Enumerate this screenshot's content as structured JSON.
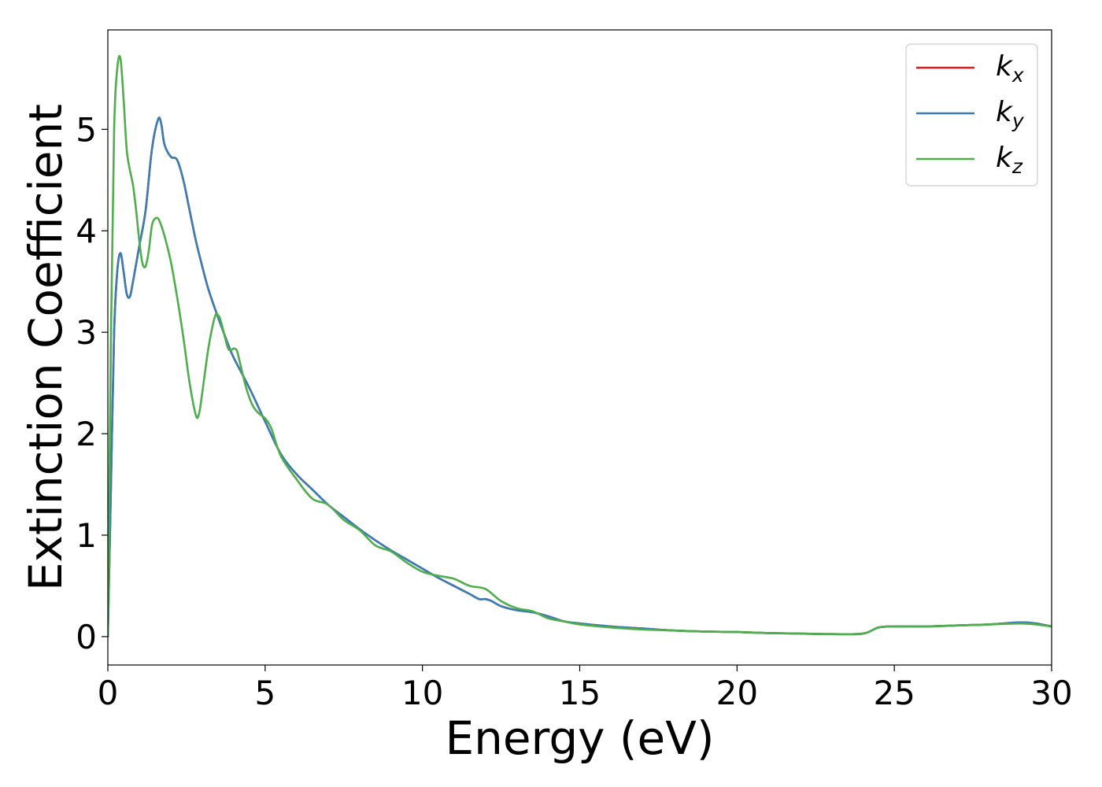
{
  "chart_data": {
    "type": "line",
    "title": "",
    "xlabel": "Energy (eV)",
    "ylabel": "Extinction Coefficient",
    "xlim": [
      0,
      30
    ],
    "ylim": [
      -0.28,
      5.98
    ],
    "xticks": [
      0,
      5,
      10,
      15,
      20,
      25,
      30
    ],
    "xtick_labels": [
      "0",
      "5",
      "10",
      "15",
      "20",
      "25",
      "30"
    ],
    "yticks": [
      0,
      1,
      2,
      3,
      4,
      5
    ],
    "ytick_labels": [
      "0",
      "1",
      "2",
      "3",
      "4",
      "5"
    ],
    "grid": false,
    "legend_position": "top-right",
    "series": [
      {
        "name": "k_x",
        "label_main": "k",
        "label_sub": "x",
        "color": "#e41a1c",
        "x": [
          0,
          0.1,
          0.2,
          0.3,
          0.4,
          0.5,
          0.6,
          0.7,
          0.8,
          1.0,
          1.2,
          1.4,
          1.6,
          1.7,
          1.8,
          2.0,
          2.2,
          2.4,
          2.6,
          2.8,
          3.0,
          3.2,
          3.5,
          3.8,
          4.0,
          4.5,
          5.0,
          5.5,
          6.0,
          6.5,
          7.0,
          7.5,
          8.0,
          8.5,
          9.0,
          9.5,
          10.0,
          10.5,
          11.0,
          11.5,
          11.8,
          12.0,
          12.2,
          12.5,
          13.0,
          13.5,
          14.0,
          14.5,
          15.0,
          16.0,
          17.0,
          18.0,
          19.0,
          20.0,
          21.0,
          22.0,
          23.0,
          24.0,
          24.5,
          25.0,
          26.0,
          27.0,
          28.0,
          29.0,
          29.5,
          30.0
        ],
        "y": [
          0,
          1.5,
          3.0,
          3.6,
          3.78,
          3.6,
          3.38,
          3.35,
          3.5,
          3.85,
          4.2,
          4.8,
          5.1,
          5.05,
          4.85,
          4.73,
          4.7,
          4.5,
          4.2,
          3.9,
          3.65,
          3.42,
          3.15,
          2.9,
          2.75,
          2.45,
          2.12,
          1.8,
          1.6,
          1.45,
          1.3,
          1.18,
          1.06,
          0.95,
          0.85,
          0.76,
          0.67,
          0.58,
          0.5,
          0.42,
          0.37,
          0.37,
          0.35,
          0.3,
          0.26,
          0.24,
          0.2,
          0.15,
          0.13,
          0.1,
          0.08,
          0.06,
          0.05,
          0.045,
          0.035,
          0.03,
          0.025,
          0.03,
          0.09,
          0.1,
          0.1,
          0.11,
          0.12,
          0.14,
          0.13,
          0.1
        ]
      },
      {
        "name": "k_y",
        "label_main": "k",
        "label_sub": "y",
        "color": "#377eb8",
        "x": [
          0,
          0.1,
          0.2,
          0.3,
          0.4,
          0.5,
          0.6,
          0.7,
          0.8,
          1.0,
          1.2,
          1.4,
          1.6,
          1.7,
          1.8,
          2.0,
          2.2,
          2.4,
          2.6,
          2.8,
          3.0,
          3.2,
          3.5,
          3.8,
          4.0,
          4.5,
          5.0,
          5.5,
          6.0,
          6.5,
          7.0,
          7.5,
          8.0,
          8.5,
          9.0,
          9.5,
          10.0,
          10.5,
          11.0,
          11.5,
          11.8,
          12.0,
          12.2,
          12.5,
          13.0,
          13.5,
          14.0,
          14.5,
          15.0,
          16.0,
          17.0,
          18.0,
          19.0,
          20.0,
          21.0,
          22.0,
          23.0,
          24.0,
          24.5,
          25.0,
          26.0,
          27.0,
          28.0,
          29.0,
          29.5,
          30.0
        ],
        "y": [
          0,
          1.5,
          3.0,
          3.6,
          3.78,
          3.6,
          3.38,
          3.35,
          3.5,
          3.85,
          4.2,
          4.8,
          5.1,
          5.05,
          4.85,
          4.73,
          4.7,
          4.5,
          4.2,
          3.9,
          3.65,
          3.42,
          3.15,
          2.9,
          2.75,
          2.45,
          2.12,
          1.8,
          1.6,
          1.45,
          1.3,
          1.18,
          1.06,
          0.95,
          0.85,
          0.76,
          0.67,
          0.58,
          0.5,
          0.42,
          0.37,
          0.37,
          0.35,
          0.3,
          0.26,
          0.24,
          0.2,
          0.15,
          0.13,
          0.1,
          0.08,
          0.06,
          0.05,
          0.045,
          0.035,
          0.03,
          0.025,
          0.03,
          0.09,
          0.1,
          0.1,
          0.11,
          0.12,
          0.14,
          0.13,
          0.1
        ]
      },
      {
        "name": "k_z",
        "label_main": "k",
        "label_sub": "z",
        "color": "#4daf4a",
        "x": [
          0,
          0.1,
          0.2,
          0.3,
          0.4,
          0.5,
          0.6,
          0.7,
          0.8,
          0.9,
          1.0,
          1.1,
          1.2,
          1.3,
          1.4,
          1.5,
          1.6,
          1.7,
          1.8,
          2.0,
          2.2,
          2.4,
          2.6,
          2.8,
          2.9,
          3.0,
          3.2,
          3.4,
          3.5,
          3.6,
          3.8,
          3.9,
          4.0,
          4.1,
          4.2,
          4.4,
          4.6,
          4.8,
          5.0,
          5.2,
          5.5,
          6.0,
          6.5,
          7.0,
          7.5,
          8.0,
          8.5,
          9.0,
          9.5,
          10.0,
          10.5,
          11.0,
          11.5,
          12.0,
          12.5,
          13.0,
          13.5,
          14.0,
          14.5,
          15.0,
          16.0,
          17.0,
          18.0,
          19.0,
          20.0,
          21.0,
          22.0,
          23.0,
          24.0,
          24.5,
          25.0,
          26.0,
          27.0,
          28.0,
          29.0,
          29.5,
          30.0
        ],
        "y": [
          0,
          3.0,
          5.0,
          5.6,
          5.7,
          5.3,
          4.8,
          4.6,
          4.45,
          4.2,
          3.9,
          3.68,
          3.65,
          3.8,
          4.05,
          4.12,
          4.12,
          4.05,
          3.95,
          3.7,
          3.35,
          2.95,
          2.5,
          2.18,
          2.2,
          2.4,
          2.85,
          3.15,
          3.17,
          3.1,
          2.86,
          2.82,
          2.84,
          2.82,
          2.7,
          2.45,
          2.28,
          2.2,
          2.15,
          2.05,
          1.78,
          1.55,
          1.36,
          1.3,
          1.15,
          1.05,
          0.9,
          0.84,
          0.73,
          0.64,
          0.6,
          0.57,
          0.5,
          0.47,
          0.35,
          0.28,
          0.25,
          0.18,
          0.15,
          0.12,
          0.09,
          0.07,
          0.06,
          0.05,
          0.045,
          0.035,
          0.03,
          0.025,
          0.03,
          0.09,
          0.1,
          0.1,
          0.11,
          0.12,
          0.13,
          0.12,
          0.1
        ]
      }
    ]
  }
}
